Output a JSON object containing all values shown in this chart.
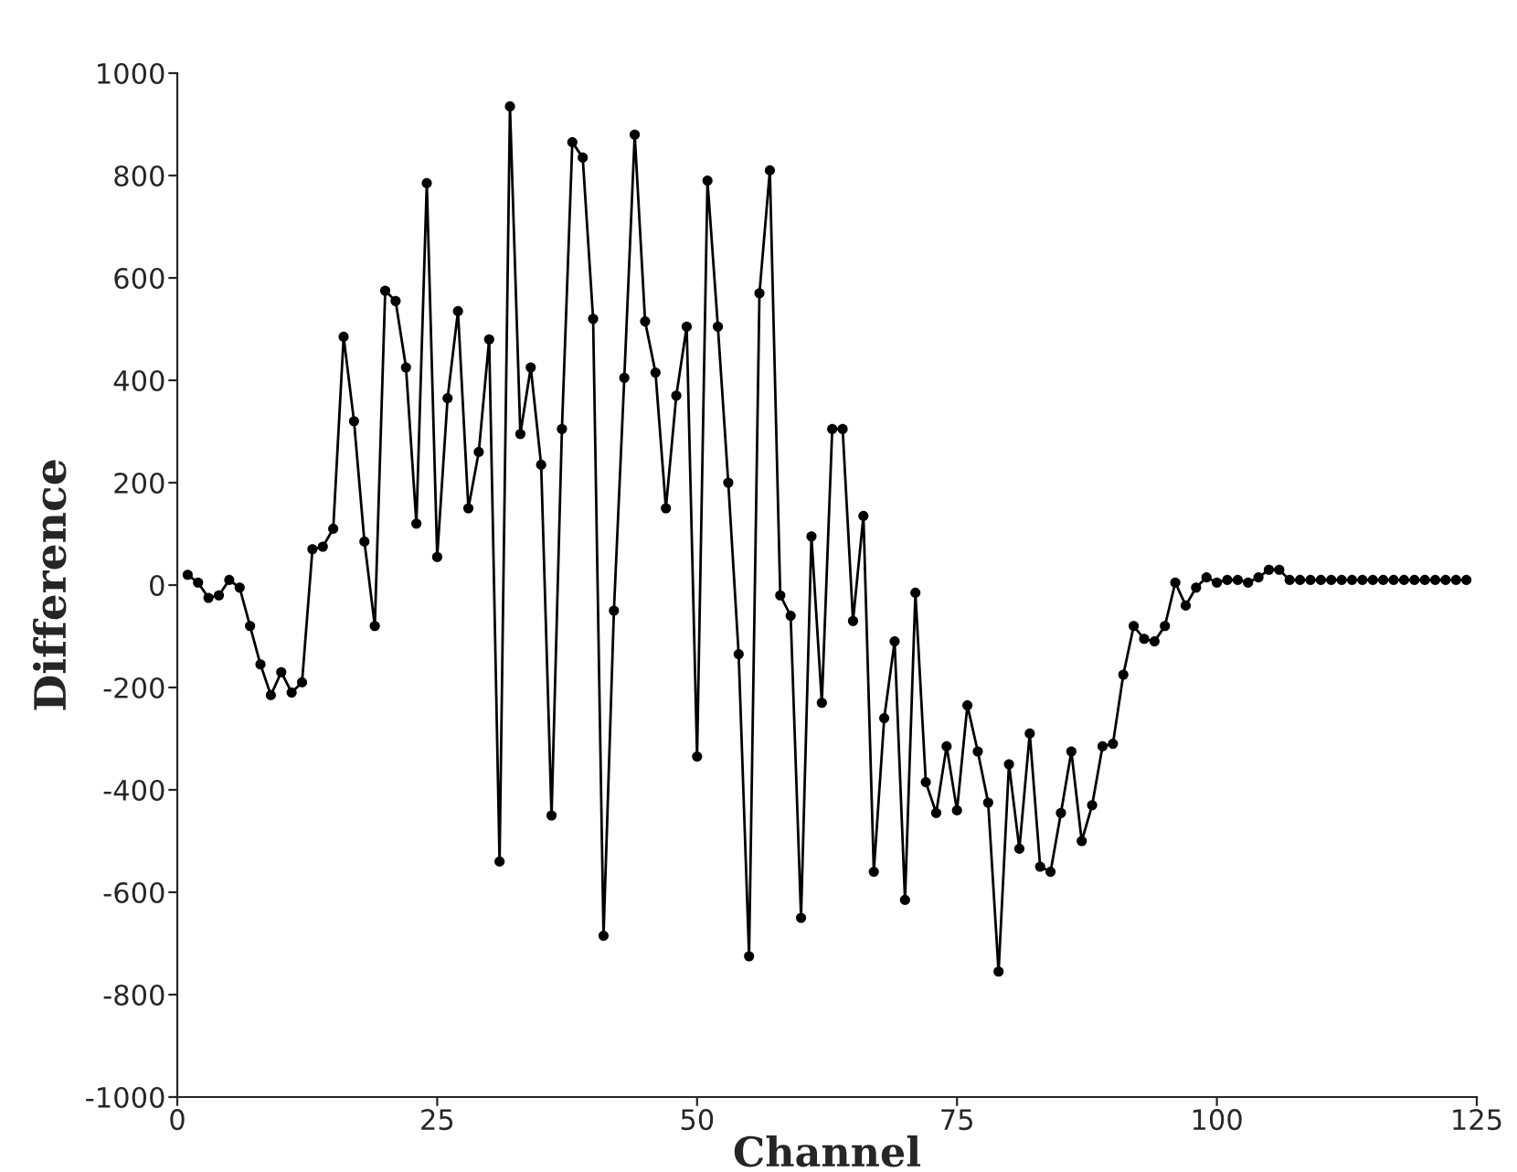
{
  "chart_data": {
    "type": "line",
    "xlabel": "Channel",
    "ylabel": "Difference",
    "x": [
      1,
      2,
      3,
      4,
      5,
      6,
      7,
      8,
      9,
      10,
      11,
      12,
      13,
      14,
      15,
      16,
      17,
      18,
      19,
      20,
      21,
      22,
      23,
      24,
      25,
      26,
      27,
      28,
      29,
      30,
      31,
      32,
      33,
      34,
      35,
      36,
      37,
      38,
      39,
      40,
      41,
      42,
      43,
      44,
      45,
      46,
      47,
      48,
      49,
      50,
      51,
      52,
      53,
      54,
      55,
      56,
      57,
      58,
      59,
      60,
      61,
      62,
      63,
      64,
      65,
      66,
      67,
      68,
      69,
      70,
      71,
      72,
      73,
      74,
      75,
      76,
      77,
      78,
      79,
      80,
      81,
      82,
      83,
      84,
      85,
      86,
      87,
      88,
      89,
      90,
      91,
      92,
      93,
      94,
      95,
      96,
      97,
      98,
      99,
      100,
      101,
      102,
      103,
      104,
      105,
      106,
      107,
      108,
      109,
      110,
      111,
      112,
      113,
      114,
      115,
      116,
      117,
      118,
      119,
      120,
      121,
      122,
      123,
      124
    ],
    "series": [
      {
        "color": "#000000",
        "values": [
          20,
          5,
          -25,
          -20,
          10,
          -5,
          -80,
          -155,
          -215,
          -170,
          -210,
          -190,
          70,
          75,
          110,
          485,
          320,
          85,
          -80,
          575,
          555,
          425,
          120,
          785,
          55,
          365,
          535,
          150,
          260,
          480,
          -540,
          935,
          295,
          425,
          235,
          -450,
          305,
          865,
          835,
          520,
          -685,
          -50,
          405,
          880,
          515,
          415,
          150,
          370,
          505,
          -335,
          790,
          505,
          200,
          -135,
          -725,
          570,
          810,
          -20,
          -60,
          -650,
          95,
          -230,
          305,
          305,
          -70,
          135,
          -560,
          -260,
          -110,
          -615,
          -15,
          -385,
          -445,
          -315,
          -440,
          -235,
          -325,
          -425,
          -755,
          -350,
          -515,
          -290,
          -550,
          -560,
          -445,
          -325,
          -500,
          -430,
          -315,
          -310,
          -175,
          -80,
          -105,
          -110,
          -80,
          5,
          -40,
          -5,
          15,
          5,
          10,
          10,
          5,
          15,
          30,
          30,
          10,
          10,
          10,
          10,
          10,
          10,
          10,
          10,
          10,
          10,
          10,
          10,
          10,
          10,
          10,
          10,
          10,
          10
        ]
      }
    ],
    "xlim": [
      0,
      125
    ],
    "xticks": [
      0,
      25,
      50,
      75,
      100,
      125
    ],
    "ylim": [
      -1000,
      1000
    ],
    "yticks": [
      -1000,
      -800,
      -600,
      -400,
      -200,
      0,
      200,
      400,
      600,
      800,
      1000
    ],
    "marker": "circle",
    "line_style": "solid",
    "grid": false,
    "legend": false
  }
}
